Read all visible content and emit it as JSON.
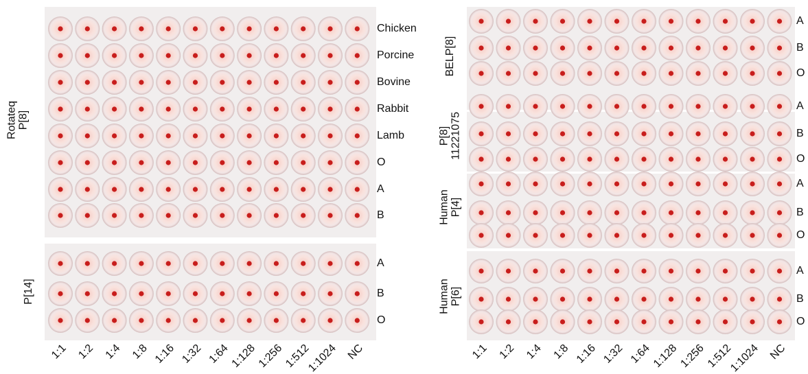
{
  "left_plate": {
    "panels": [
      {
        "label_lines": [
          "Rotateq",
          "P[8]"
        ],
        "rows": [
          "Chicken",
          "Porcine",
          "Bovine",
          "Rabbit",
          "Lamb",
          "O",
          "A",
          "B"
        ]
      },
      {
        "label_lines": [
          "P[14]"
        ],
        "rows": [
          "A",
          "B",
          "O"
        ]
      }
    ],
    "dilutions": [
      "1:1",
      "1:2",
      "1:4",
      "1:8",
      "1:16",
      "1:32",
      "1:64",
      "1:128",
      "1:256",
      "1:512",
      "1:1024",
      "NC"
    ]
  },
  "right_plate": {
    "panels": [
      {
        "label_lines": [
          "BELP[8]"
        ],
        "rows": [
          "A",
          "B",
          "O"
        ]
      },
      {
        "label_lines": [
          "P[8]",
          "11221075"
        ],
        "rows": [
          "A",
          "B",
          "O"
        ]
      },
      {
        "label_lines": [
          "Human",
          "P[4]"
        ],
        "rows": [
          "A",
          "B",
          "O"
        ]
      },
      {
        "label_lines": [
          "Human",
          "P[6]"
        ],
        "rows": [
          "A",
          "B",
          "O"
        ]
      }
    ],
    "dilutions": [
      "1:1",
      "1:2",
      "1:4",
      "1:8",
      "1:16",
      "1:32",
      "1:64",
      "1:128",
      "1:256",
      "1:512",
      "1:1024",
      "NC"
    ]
  }
}
